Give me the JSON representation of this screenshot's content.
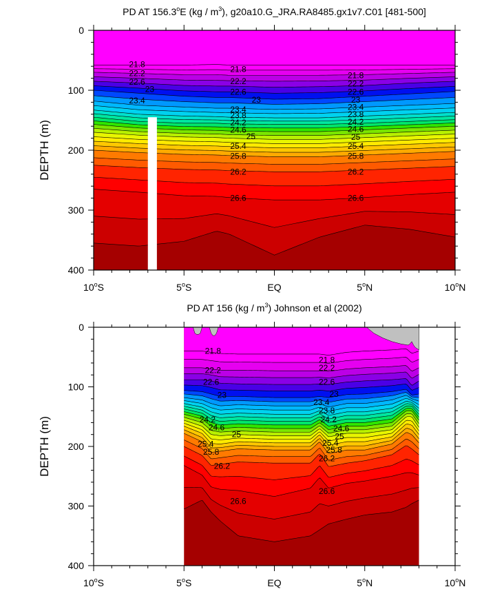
{
  "chart_data": [
    {
      "type": "contour",
      "title": "PD AT 156.3°E (kg / m³), g20a10.G_JRA.RA8485.gx1v7.C01 [481-500]",
      "title_parts": {
        "pre": "PD AT 156.3",
        "deg": "o",
        "mid": "E (kg / m",
        "cube": "3",
        "post": "), g20a10.G_JRA.RA8485.gx1v7.C01 [481-500]"
      },
      "xlabel": "",
      "ylabel": "DEPTH (m)",
      "xlim": [
        -10,
        10
      ],
      "ylim": [
        400,
        0
      ],
      "x_ticks": [
        {
          "value": -10,
          "label": "10",
          "deg": "o",
          "hemi": "S"
        },
        {
          "value": -5,
          "label": "5",
          "deg": "o",
          "hemi": "S"
        },
        {
          "value": 0,
          "label": "EQ",
          "deg": "",
          "hemi": ""
        },
        {
          "value": 5,
          "label": "5",
          "deg": "o",
          "hemi": "N"
        },
        {
          "value": 10,
          "label": "10",
          "deg": "o",
          "hemi": "N"
        }
      ],
      "y_ticks": [
        {
          "value": 0,
          "label": "0"
        },
        {
          "value": 100,
          "label": "100"
        },
        {
          "value": 200,
          "label": "200"
        },
        {
          "value": 300,
          "label": "300"
        },
        {
          "value": 400,
          "label": "400"
        }
      ],
      "data_range_x": [
        -10,
        10
      ],
      "missing_strip": {
        "x": [
          -7.0,
          -6.5
        ],
        "depth": [
          145,
          400
        ]
      },
      "contour_levels": [
        21.0,
        21.2,
        21.4,
        21.6,
        21.8,
        22.0,
        22.2,
        22.4,
        22.6,
        22.8,
        23.0,
        23.2,
        23.4,
        23.6,
        23.8,
        24.0,
        24.2,
        24.4,
        24.6,
        24.8,
        25.0,
        25.2,
        25.4,
        25.6,
        25.8,
        26.0,
        26.2,
        26.4,
        26.6,
        26.8,
        27.0
      ],
      "profile_x": [
        -10,
        -7.5,
        -5,
        -3.2,
        -2.5,
        0,
        2.5,
        5,
        7.5,
        10
      ],
      "isopycnal_depth": [
        {
          "level": 21.8,
          "depth": [
            58,
            58,
            58,
            57,
            58,
            58,
            58,
            58,
            58,
            58
          ]
        },
        {
          "level": 22.2,
          "depth": [
            70,
            72,
            74,
            74,
            75,
            75,
            75,
            74,
            72,
            70
          ]
        },
        {
          "level": 22.6,
          "depth": [
            85,
            88,
            92,
            93,
            93,
            95,
            94,
            92,
            88,
            85
          ]
        },
        {
          "level": 23.0,
          "depth": [
            100,
            105,
            110,
            112,
            112,
            115,
            114,
            110,
            106,
            102
          ]
        },
        {
          "level": 23.4,
          "depth": [
            118,
            125,
            128,
            130,
            130,
            132,
            131,
            128,
            125,
            122
          ]
        },
        {
          "level": 23.8,
          "depth": [
            133,
            140,
            143,
            144,
            145,
            146,
            146,
            143,
            140,
            137
          ]
        },
        {
          "level": 24.2,
          "depth": [
            145,
            152,
            155,
            155,
            156,
            157,
            157,
            155,
            152,
            149
          ]
        },
        {
          "level": 24.6,
          "depth": [
            157,
            163,
            166,
            167,
            168,
            169,
            169,
            166,
            163,
            160
          ]
        },
        {
          "level": 25.0,
          "depth": [
            170,
            175,
            178,
            179,
            180,
            182,
            182,
            179,
            176,
            173
          ]
        },
        {
          "level": 25.4,
          "depth": [
            185,
            189,
            192,
            193,
            194,
            196,
            196,
            193,
            190,
            187
          ]
        },
        {
          "level": 25.8,
          "depth": [
            200,
            204,
            207,
            208,
            209,
            211,
            211,
            208,
            205,
            202
          ]
        },
        {
          "level": 26.2,
          "depth": [
            225,
            229,
            232,
            233,
            234,
            236,
            236,
            233,
            230,
            227
          ]
        },
        {
          "level": 26.6,
          "depth": [
            265,
            270,
            276,
            277,
            279,
            283,
            283,
            279,
            274,
            270
          ]
        },
        {
          "level": 27.0,
          "depth": [
            355,
            360,
            352,
            335,
            340,
            375,
            345,
            325,
            332,
            345
          ]
        }
      ],
      "contour_labels": [
        {
          "text": "21.8",
          "x": -7.6,
          "depth": 57
        },
        {
          "text": "21.8",
          "x": -2.0,
          "depth": 65
        },
        {
          "text": "21.8",
          "x": 4.5,
          "depth": 75
        },
        {
          "text": "22.2",
          "x": -7.6,
          "depth": 72
        },
        {
          "text": "22.2",
          "x": -2.0,
          "depth": 85
        },
        {
          "text": "22.2",
          "x": 4.5,
          "depth": 89
        },
        {
          "text": "22.6",
          "x": -7.6,
          "depth": 86
        },
        {
          "text": "22.6",
          "x": -2.0,
          "depth": 103
        },
        {
          "text": "22.6",
          "x": 4.5,
          "depth": 103
        },
        {
          "text": "23",
          "x": -6.9,
          "depth": 98
        },
        {
          "text": "23",
          "x": -1.0,
          "depth": 116
        },
        {
          "text": "23",
          "x": 4.5,
          "depth": 116
        },
        {
          "text": "23.4",
          "x": -7.6,
          "depth": 117
        },
        {
          "text": "23.4",
          "x": -2.0,
          "depth": 132
        },
        {
          "text": "23.4",
          "x": 4.5,
          "depth": 128
        },
        {
          "text": "23.8",
          "x": -2.0,
          "depth": 142
        },
        {
          "text": "23.8",
          "x": 4.5,
          "depth": 140
        },
        {
          "text": "24.2",
          "x": -2.0,
          "depth": 154
        },
        {
          "text": "24.2",
          "x": 4.5,
          "depth": 153
        },
        {
          "text": "24.6",
          "x": -2.0,
          "depth": 166
        },
        {
          "text": "24.6",
          "x": 4.5,
          "depth": 165
        },
        {
          "text": "25",
          "x": -1.3,
          "depth": 177
        },
        {
          "text": "25",
          "x": 4.5,
          "depth": 178
        },
        {
          "text": "25.4",
          "x": -2.0,
          "depth": 193
        },
        {
          "text": "25.4",
          "x": 4.5,
          "depth": 193
        },
        {
          "text": "25.8",
          "x": -2.0,
          "depth": 210
        },
        {
          "text": "25.8",
          "x": 4.5,
          "depth": 210
        },
        {
          "text": "26.2",
          "x": -2.0,
          "depth": 236
        },
        {
          "text": "26.2",
          "x": 4.5,
          "depth": 236
        },
        {
          "text": "26.6",
          "x": -2.0,
          "depth": 280
        },
        {
          "text": "26.6",
          "x": 4.5,
          "depth": 280
        }
      ]
    },
    {
      "type": "contour",
      "title": "PD AT 156 (kg / m³) Johnson et al (2002)",
      "title_parts": {
        "pre": "PD AT 156 (kg / m",
        "deg": "",
        "mid": "",
        "cube": "3",
        "post": ") Johnson et al (2002)"
      },
      "xlabel": "",
      "ylabel": "DEPTH (m)",
      "xlim": [
        -10,
        10
      ],
      "ylim": [
        400,
        0
      ],
      "x_ticks": [
        {
          "value": -10,
          "label": "10",
          "deg": "o",
          "hemi": "S"
        },
        {
          "value": -5,
          "label": "5",
          "deg": "o",
          "hemi": "S"
        },
        {
          "value": 0,
          "label": "EQ",
          "deg": "",
          "hemi": ""
        },
        {
          "value": 5,
          "label": "5",
          "deg": "o",
          "hemi": "N"
        },
        {
          "value": 10,
          "label": "10",
          "deg": "o",
          "hemi": "N"
        }
      ],
      "y_ticks": [
        {
          "value": 0,
          "label": "0"
        },
        {
          "value": 100,
          "label": "100"
        },
        {
          "value": 200,
          "label": "200"
        },
        {
          "value": 300,
          "label": "300"
        },
        {
          "value": 400,
          "label": "400"
        }
      ],
      "data_range_x": [
        -5,
        8
      ],
      "contour_levels": [
        21.0,
        21.2,
        21.4,
        21.6,
        21.8,
        22.0,
        22.2,
        22.4,
        22.6,
        22.8,
        23.0,
        23.2,
        23.4,
        23.6,
        23.8,
        24.0,
        24.2,
        24.4,
        24.6,
        24.8,
        25.0,
        25.2,
        25.4,
        25.6,
        25.8,
        26.0,
        26.2,
        26.4,
        26.6,
        26.8,
        27.0
      ],
      "profile_x": [
        -5,
        -4.0,
        -3.5,
        -3.0,
        -2.0,
        0,
        2.0,
        2.5,
        3.0,
        4.0,
        5.0,
        6.5,
        7.3,
        7.6,
        8.0
      ],
      "isopycnal_depth": [
        {
          "level": 21.8,
          "depth": [
            40,
            40,
            42,
            44,
            45,
            45,
            45,
            45,
            47,
            42,
            40,
            38,
            36,
            44,
            40
          ]
        },
        {
          "level": 22.2,
          "depth": [
            68,
            68,
            70,
            72,
            72,
            73,
            73,
            73,
            74,
            70,
            68,
            66,
            64,
            74,
            68
          ]
        },
        {
          "level": 22.6,
          "depth": [
            88,
            88,
            90,
            94,
            95,
            96,
            96,
            95,
            96,
            92,
            90,
            88,
            86,
            98,
            90
          ]
        },
        {
          "level": 23.0,
          "depth": [
            106,
            108,
            112,
            116,
            116,
            118,
            118,
            116,
            118,
            113,
            112,
            108,
            104,
            114,
            112
          ]
        },
        {
          "level": 23.4,
          "depth": [
            118,
            122,
            128,
            132,
            130,
            132,
            132,
            128,
            134,
            128,
            128,
            122,
            114,
            120,
            124
          ]
        },
        {
          "level": 23.8,
          "depth": [
            128,
            134,
            142,
            146,
            144,
            146,
            146,
            140,
            148,
            142,
            142,
            136,
            124,
            126,
            136
          ]
        },
        {
          "level": 24.2,
          "depth": [
            137,
            144,
            154,
            158,
            156,
            158,
            158,
            150,
            160,
            154,
            154,
            148,
            132,
            132,
            146
          ]
        },
        {
          "level": 24.6,
          "depth": [
            146,
            154,
            166,
            170,
            168,
            170,
            170,
            160,
            172,
            166,
            166,
            160,
            140,
            140,
            156
          ]
        },
        {
          "level": 25.0,
          "depth": [
            156,
            166,
            180,
            182,
            180,
            182,
            182,
            170,
            184,
            178,
            178,
            172,
            150,
            150,
            168
          ]
        },
        {
          "level": 25.4,
          "depth": [
            166,
            178,
            195,
            196,
            192,
            194,
            194,
            180,
            198,
            192,
            192,
            184,
            162,
            164,
            180
          ]
        },
        {
          "level": 25.8,
          "depth": [
            178,
            192,
            210,
            208,
            204,
            206,
            206,
            192,
            212,
            206,
            206,
            196,
            176,
            180,
            194
          ]
        },
        {
          "level": 26.2,
          "depth": [
            200,
            215,
            232,
            230,
            226,
            228,
            228,
            212,
            234,
            228,
            224,
            214,
            198,
            204,
            214
          ]
        },
        {
          "level": 26.6,
          "depth": [
            232,
            248,
            268,
            272,
            274,
            284,
            270,
            252,
            270,
            262,
            258,
            250,
            244,
            244,
            248
          ]
        },
        {
          "level": 27.0,
          "depth": [
            305,
            290,
            310,
            325,
            350,
            360,
            350,
            340,
            330,
            322,
            315,
            310,
            302,
            296,
            290
          ]
        }
      ],
      "gray_patches": [
        {
          "x": [
            -4.5,
            -4.4,
            -4.3,
            -4.2,
            -4.1,
            -4.0,
            -3.6,
            -3.5,
            -3.4,
            -3.3,
            -3.2,
            -3.1
          ],
          "depth": [
            0,
            10,
            12,
            12,
            10,
            0,
            0,
            10,
            14,
            14,
            10,
            0
          ]
        },
        {
          "x": [
            5.1,
            5.5,
            6.0,
            6.5,
            7.0,
            7.4,
            7.5,
            7.6,
            7.7,
            7.8,
            8.0,
            8.0
          ],
          "depth": [
            0,
            10,
            18,
            24,
            28,
            30,
            28,
            24,
            30,
            34,
            38,
            0
          ]
        }
      ],
      "contour_labels": [
        {
          "text": "21.8",
          "x": -3.4,
          "depth": 40
        },
        {
          "text": "21.8",
          "x": 2.9,
          "depth": 55
        },
        {
          "text": "22.2",
          "x": -3.4,
          "depth": 72
        },
        {
          "text": "22.2",
          "x": 2.9,
          "depth": 68
        },
        {
          "text": "22.6",
          "x": -3.5,
          "depth": 92
        },
        {
          "text": "22.6",
          "x": 2.9,
          "depth": 92
        },
        {
          "text": "23",
          "x": -2.9,
          "depth": 114
        },
        {
          "text": "23",
          "x": 3.3,
          "depth": 112
        },
        {
          "text": "23.4",
          "x": 2.6,
          "depth": 126
        },
        {
          "text": "23.8",
          "x": 2.9,
          "depth": 140
        },
        {
          "text": "24.2",
          "x": -3.7,
          "depth": 155
        },
        {
          "text": "24.2",
          "x": 3.0,
          "depth": 155
        },
        {
          "text": "24.6",
          "x": -3.2,
          "depth": 168
        },
        {
          "text": "24.6",
          "x": 3.7,
          "depth": 170
        },
        {
          "text": "25",
          "x": -2.1,
          "depth": 180
        },
        {
          "text": "25",
          "x": 3.6,
          "depth": 183
        },
        {
          "text": "25.4",
          "x": -3.8,
          "depth": 196
        },
        {
          "text": "25.4",
          "x": 3.1,
          "depth": 194
        },
        {
          "text": "25.8",
          "x": -3.5,
          "depth": 209
        },
        {
          "text": "25.8",
          "x": 3.3,
          "depth": 206
        },
        {
          "text": "26.2",
          "x": -2.9,
          "depth": 233
        },
        {
          "text": "26.2",
          "x": 2.9,
          "depth": 220
        },
        {
          "text": "26.6",
          "x": -2.0,
          "depth": 292
        },
        {
          "text": "26.6",
          "x": 2.9,
          "depth": 275
        }
      ]
    }
  ],
  "colors": {
    "background": "#ffffff",
    "missing": "#c0c0c0",
    "deep_fill": "#a50000",
    "contour_line": "#000000",
    "palette": [
      "#ff00ff",
      "#e600f0",
      "#bb00e6",
      "#8a00e6",
      "#4a00e6",
      "#0010f0",
      "#0048ff",
      "#0078ff",
      "#0098ff",
      "#00b8ff",
      "#00d2f0",
      "#00e0cc",
      "#00e6a0",
      "#00e66a",
      "#00dc34",
      "#2ee600",
      "#7ae600",
      "#b8f000",
      "#e8f500",
      "#ffea00",
      "#ffc800",
      "#ffaa00",
      "#ff9200",
      "#ff7a00",
      "#ff5a00",
      "#ff2400",
      "#ff0000",
      "#e40000",
      "#cc0000",
      "#b80000"
    ]
  }
}
